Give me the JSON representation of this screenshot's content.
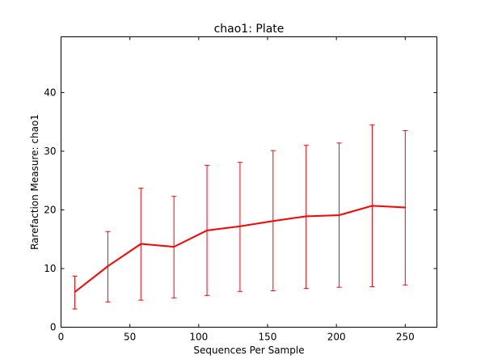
{
  "chart_data": {
    "type": "line",
    "title": "chao1: Plate",
    "xlabel": "Sequences Per Sample",
    "ylabel": "Rarefaction Measure: chao1",
    "xlim": [
      0,
      273
    ],
    "ylim": [
      0,
      49.5
    ],
    "xticks": [
      0,
      50,
      100,
      150,
      200,
      250
    ],
    "yticks": [
      0,
      10,
      20,
      30,
      40
    ],
    "grid": false,
    "series": [
      {
        "color": "#ff0000",
        "x": [
          10,
          34,
          58,
          82,
          106,
          130,
          154,
          178,
          202,
          226,
          250
        ],
        "y": [
          6.0,
          10.4,
          14.2,
          13.7,
          16.5,
          17.2,
          18.1,
          18.9,
          19.1,
          20.7,
          20.4
        ],
        "yerr_low": [
          3.1,
          4.3,
          4.6,
          5.0,
          5.4,
          6.1,
          6.2,
          6.6,
          6.8,
          6.9,
          7.2
        ],
        "yerr_high": [
          8.7,
          16.3,
          23.7,
          22.3,
          27.6,
          28.1,
          30.1,
          31.0,
          31.4,
          34.5,
          33.5
        ]
      }
    ]
  }
}
